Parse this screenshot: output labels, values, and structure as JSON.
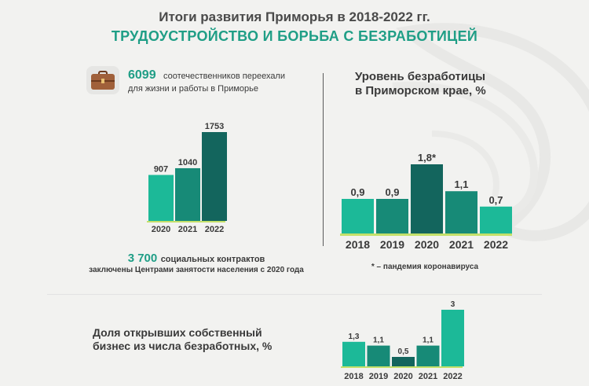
{
  "header": {
    "title": "Итоги развития Приморья в 2018-2022 гг.",
    "subtitle": "ТРУДОУСТРОЙСТВО И БОРЬБА С БЕЗРАБОТИЦЕЙ"
  },
  "migration": {
    "icon": "briefcase-icon",
    "number": "6099",
    "text_line1": "соотечественников переехали",
    "text_line2": "для жизни и работы в Приморье"
  },
  "contracts": {
    "number": "3 700",
    "text_line1": "социальных контрактов",
    "text_line2": "заключены Центрами занятости населения с 2020 года"
  },
  "unemployment": {
    "title_line1": "Уровень безработицы",
    "title_line2": "в Приморском крае, %",
    "footnote": "* – пандемия коронавируса"
  },
  "business": {
    "title_line1": "Доля открывших собственный",
    "title_line2": "бизнес из числа безработных, %"
  },
  "colors": {
    "teal": "#1f9e86",
    "light_green": "#1cb998",
    "mid_green": "#178a77",
    "dark_green": "#13655d",
    "baseline": "#c4e06a"
  },
  "chart_data": [
    {
      "type": "bar",
      "categories": [
        "2020",
        "2021",
        "2022"
      ],
      "values": [
        907,
        1040,
        1753
      ],
      "labels": [
        "907",
        "1040",
        "1753"
      ],
      "colors": [
        "#1cb998",
        "#178a77",
        "#13655d"
      ]
    },
    {
      "type": "bar",
      "title": "Уровень безработицы в Приморском крае, %",
      "categories": [
        "2018",
        "2019",
        "2020",
        "2021",
        "2022"
      ],
      "values": [
        0.9,
        0.9,
        1.8,
        1.1,
        0.7
      ],
      "labels": [
        "0,9",
        "0,9",
        "1,8*",
        "1,1",
        "0,7"
      ],
      "colors": [
        "#1cb998",
        "#178a77",
        "#13655d",
        "#178a77",
        "#1cb998"
      ]
    },
    {
      "type": "bar",
      "title": "Доля открывших собственный бизнес из числа безработных, %",
      "categories": [
        "2018",
        "2019",
        "2020",
        "2021",
        "2022"
      ],
      "values": [
        1.3,
        1.1,
        0.5,
        1.1,
        3
      ],
      "labels": [
        "1,3",
        "1,1",
        "0,5",
        "1,1",
        "3"
      ],
      "colors": [
        "#1cb998",
        "#178a77",
        "#13655d",
        "#178a77",
        "#1cb998"
      ]
    }
  ]
}
